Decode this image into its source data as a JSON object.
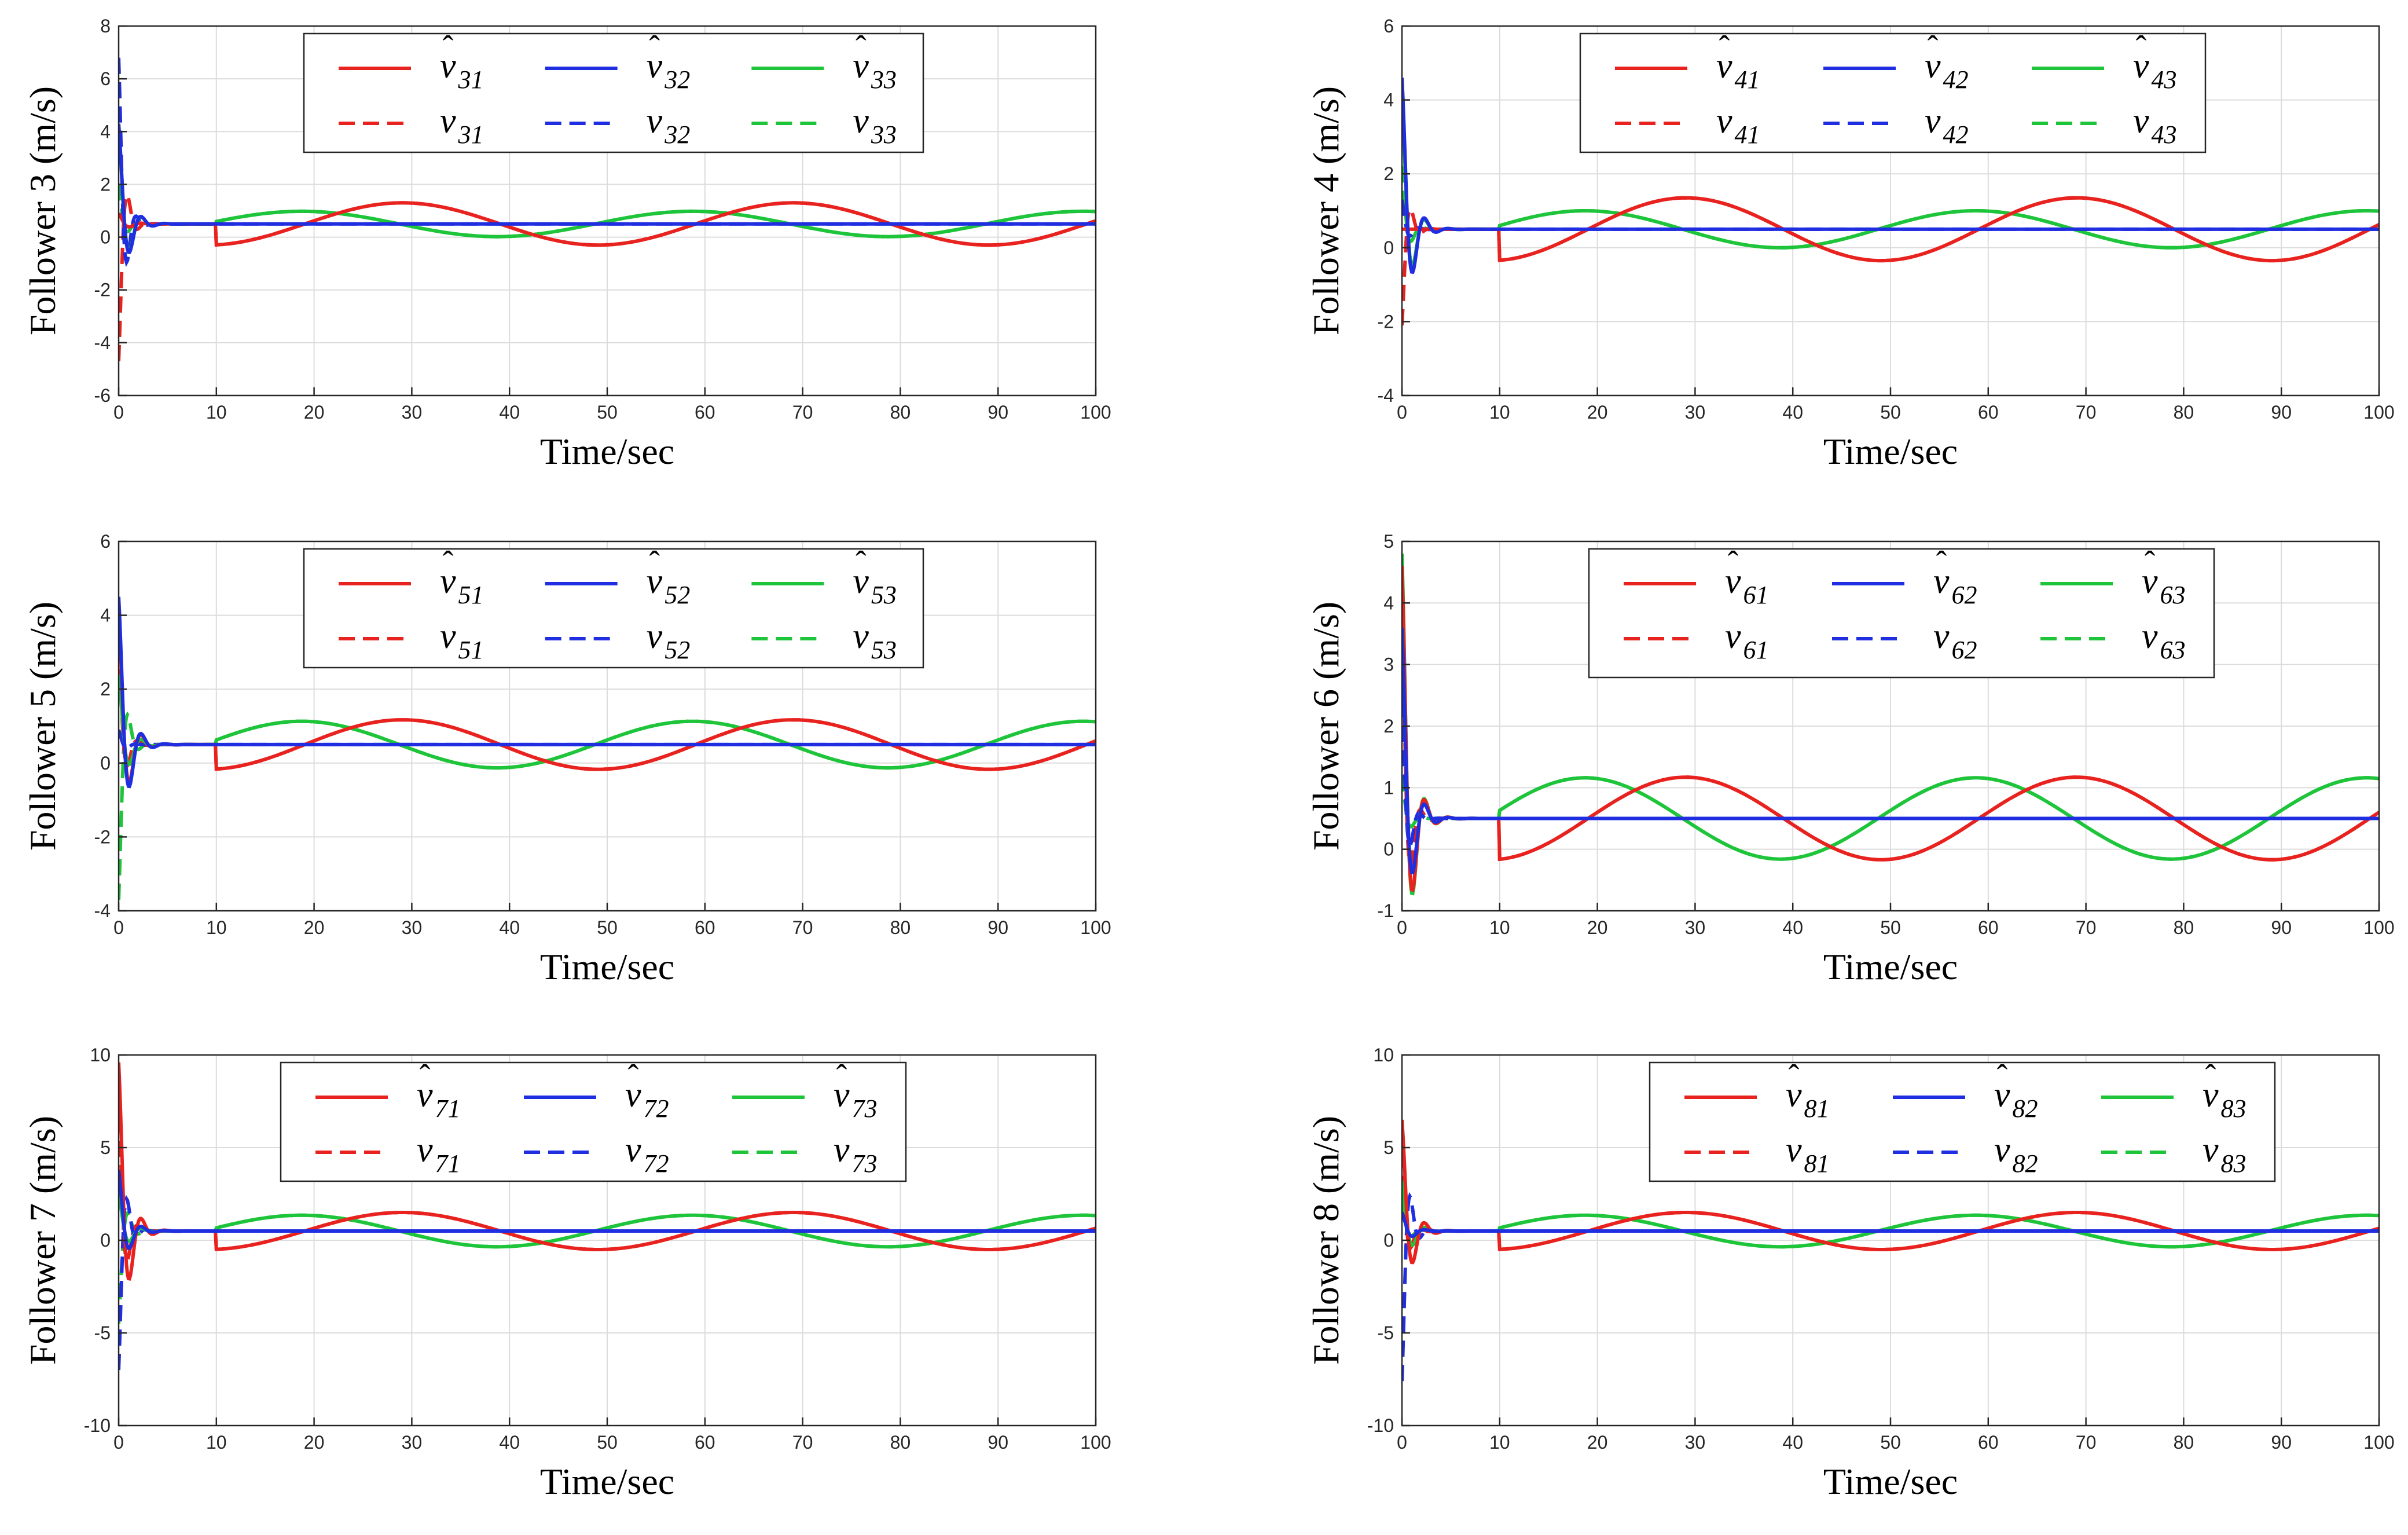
{
  "chart_data": [
    {
      "type": "line",
      "title": "",
      "xlabel": "Time/sec",
      "ylabel": "Follower 3 (m/s)",
      "xlim": [
        0,
        100
      ],
      "ylim": [
        -6,
        8
      ],
      "xticks": [
        0,
        10,
        20,
        30,
        40,
        50,
        60,
        70,
        80,
        90,
        100
      ],
      "yticks": [
        -6,
        -4,
        -2,
        0,
        2,
        4,
        6,
        8
      ],
      "grid": true,
      "legend": {
        "position": "top-center",
        "columns": 3
      },
      "series": [
        {
          "name": "v̂_31",
          "base": "v",
          "sub": "31",
          "hat": true,
          "color": "#e8231f",
          "dash": false,
          "values_desc": "estimate"
        },
        {
          "name": "v̂_32",
          "base": "v",
          "sub": "32",
          "hat": true,
          "color": "#1f2ee0",
          "dash": false
        },
        {
          "name": "v̂_33",
          "base": "v",
          "sub": "33",
          "hat": true,
          "color": "#1ec43a",
          "dash": false
        },
        {
          "name": "v_31",
          "base": "v",
          "sub": "31",
          "hat": false,
          "color": "#e8231f",
          "dash": true
        },
        {
          "name": "v_32",
          "base": "v",
          "sub": "32",
          "hat": false,
          "color": "#1f2ee0",
          "dash": true
        },
        {
          "name": "v_33",
          "base": "v",
          "sub": "33",
          "hat": false,
          "color": "#1ec43a",
          "dash": true
        }
      ],
      "steady": {
        "red_mean": 0.5,
        "red_amp": 0.8,
        "red_phase": 10,
        "green_mean": 0.5,
        "green_amp": 0.48,
        "green_phase": 0,
        "blue": 0.5
      },
      "transient": {
        "red_est_peak": 0.9,
        "red_ref_peak": -4.7,
        "blue_est_peak": 4.3,
        "blue_ref_peak": 6.8,
        "green_est_peak": 4.1,
        "green_ref_peak": 2.0
      }
    },
    {
      "type": "line",
      "title": "",
      "xlabel": "Time/sec",
      "ylabel": "Follower 4 (m/s)",
      "xlim": [
        0,
        100
      ],
      "ylim": [
        -4,
        6
      ],
      "xticks": [
        0,
        10,
        20,
        30,
        40,
        50,
        60,
        70,
        80,
        90,
        100
      ],
      "yticks": [
        -4,
        -2,
        0,
        2,
        4,
        6
      ],
      "grid": true,
      "legend": {
        "position": "top-right",
        "columns": 3
      },
      "series": [
        {
          "name": "v̂_41",
          "base": "v",
          "sub": "41",
          "hat": true,
          "color": "#e8231f",
          "dash": false
        },
        {
          "name": "v̂_42",
          "base": "v",
          "sub": "42",
          "hat": true,
          "color": "#1f2ee0",
          "dash": false
        },
        {
          "name": "v̂_43",
          "base": "v",
          "sub": "43",
          "hat": true,
          "color": "#1ec43a",
          "dash": false
        },
        {
          "name": "v_41",
          "base": "v",
          "sub": "41",
          "hat": false,
          "color": "#e8231f",
          "dash": true
        },
        {
          "name": "v_42",
          "base": "v",
          "sub": "42",
          "hat": false,
          "color": "#1f2ee0",
          "dash": true
        },
        {
          "name": "v_43",
          "base": "v",
          "sub": "43",
          "hat": false,
          "color": "#1ec43a",
          "dash": true
        }
      ],
      "steady": {
        "red_mean": 0.5,
        "red_amp": 0.85,
        "red_phase": 10,
        "green_mean": 0.5,
        "green_amp": 0.5,
        "green_phase": 0,
        "blue": 0.5
      },
      "transient": {
        "red_est_peak": 0.5,
        "red_ref_peak": -2.1,
        "blue_est_peak": 4.6,
        "blue_ref_peak": 1.3,
        "green_est_peak": 4.0,
        "green_ref_peak": 2.2
      }
    },
    {
      "type": "line",
      "title": "",
      "xlabel": "Time/sec",
      "ylabel": "Follower 5 (m/s)",
      "xlim": [
        0,
        100
      ],
      "ylim": [
        -4,
        6
      ],
      "xticks": [
        0,
        10,
        20,
        30,
        40,
        50,
        60,
        70,
        80,
        90,
        100
      ],
      "yticks": [
        -4,
        -2,
        0,
        2,
        4,
        6
      ],
      "grid": true,
      "legend": {
        "position": "top-center",
        "columns": 3
      },
      "series": [
        {
          "name": "v̂_51",
          "base": "v",
          "sub": "51",
          "hat": true,
          "color": "#e8231f",
          "dash": false
        },
        {
          "name": "v̂_52",
          "base": "v",
          "sub": "52",
          "hat": true,
          "color": "#1f2ee0",
          "dash": false
        },
        {
          "name": "v̂_53",
          "base": "v",
          "sub": "53",
          "hat": true,
          "color": "#1ec43a",
          "dash": false
        },
        {
          "name": "v_51",
          "base": "v",
          "sub": "51",
          "hat": false,
          "color": "#e8231f",
          "dash": true
        },
        {
          "name": "v_52",
          "base": "v",
          "sub": "52",
          "hat": false,
          "color": "#1f2ee0",
          "dash": true
        },
        {
          "name": "v_53",
          "base": "v",
          "sub": "53",
          "hat": false,
          "color": "#1ec43a",
          "dash": true
        }
      ],
      "steady": {
        "red_mean": 0.5,
        "red_amp": 0.67,
        "red_phase": 9,
        "green_mean": 0.5,
        "green_amp": 0.63,
        "green_phase": 1,
        "blue": 0.5
      },
      "transient": {
        "red_est_peak": 4.1,
        "red_ref_peak": 3.2,
        "blue_est_peak": 4.5,
        "blue_ref_peak": 0.9,
        "green_est_peak": 2.4,
        "green_ref_peak": -3.7
      }
    },
    {
      "type": "line",
      "title": "",
      "xlabel": "Time/sec",
      "ylabel": "Follower 6 (m/s)",
      "xlim": [
        0,
        100
      ],
      "ylim": [
        -1,
        5
      ],
      "xticks": [
        0,
        10,
        20,
        30,
        40,
        50,
        60,
        70,
        80,
        90,
        100
      ],
      "yticks": [
        -1,
        0,
        1,
        2,
        3,
        4,
        5
      ],
      "grid": true,
      "legend": {
        "position": "top-right",
        "columns": 3
      },
      "series": [
        {
          "name": "v̂_61",
          "base": "v",
          "sub": "61",
          "hat": true,
          "color": "#e8231f",
          "dash": false
        },
        {
          "name": "v̂_62",
          "base": "v",
          "sub": "62",
          "hat": true,
          "color": "#1f2ee0",
          "dash": false
        },
        {
          "name": "v̂_63",
          "base": "v",
          "sub": "63",
          "hat": true,
          "color": "#1ec43a",
          "dash": false
        },
        {
          "name": "v_61",
          "base": "v",
          "sub": "61",
          "hat": false,
          "color": "#e8231f",
          "dash": true
        },
        {
          "name": "v_62",
          "base": "v",
          "sub": "62",
          "hat": false,
          "color": "#1f2ee0",
          "dash": true
        },
        {
          "name": "v_63",
          "base": "v",
          "sub": "63",
          "hat": false,
          "color": "#1ec43a",
          "dash": true
        }
      ],
      "steady": {
        "red_mean": 0.5,
        "red_amp": 0.67,
        "red_phase": 9,
        "green_mean": 0.5,
        "green_amp": 0.66,
        "green_phase": 1,
        "blue": 0.5
      },
      "transient": {
        "red_est_peak": 4.6,
        "red_ref_peak": 4.1,
        "blue_est_peak": 3.6,
        "blue_ref_peak": 2.4,
        "green_est_peak": 4.8,
        "green_ref_peak": 1.2
      }
    },
    {
      "type": "line",
      "title": "",
      "xlabel": "Time/sec",
      "ylabel": "Follower 7 (m/s)",
      "xlim": [
        0,
        100
      ],
      "ylim": [
        -10,
        10
      ],
      "xticks": [
        0,
        10,
        20,
        30,
        40,
        50,
        60,
        70,
        80,
        90,
        100
      ],
      "yticks": [
        -10,
        -5,
        0,
        5,
        10
      ],
      "grid": true,
      "legend": {
        "position": "top-center",
        "columns": 3
      },
      "series": [
        {
          "name": "v̂_71",
          "base": "v",
          "sub": "71",
          "hat": true,
          "color": "#e8231f",
          "dash": false
        },
        {
          "name": "v̂_72",
          "base": "v",
          "sub": "72",
          "hat": true,
          "color": "#1f2ee0",
          "dash": false
        },
        {
          "name": "v̂_73",
          "base": "v",
          "sub": "73",
          "hat": true,
          "color": "#1ec43a",
          "dash": false
        },
        {
          "name": "v_71",
          "base": "v",
          "sub": "71",
          "hat": false,
          "color": "#e8231f",
          "dash": true
        },
        {
          "name": "v_72",
          "base": "v",
          "sub": "72",
          "hat": false,
          "color": "#1f2ee0",
          "dash": true
        },
        {
          "name": "v_73",
          "base": "v",
          "sub": "73",
          "hat": false,
          "color": "#1ec43a",
          "dash": true
        }
      ],
      "steady": {
        "red_mean": 0.5,
        "red_amp": 1.0,
        "red_phase": 15,
        "green_mean": 0.5,
        "green_amp": 0.85,
        "green_phase": 5,
        "blue": 0.5
      },
      "transient": {
        "red_est_peak": 9.6,
        "red_ref_peak": 8.0,
        "blue_est_peak": 3.8,
        "blue_ref_peak": -7.0,
        "green_est_peak": 2.5,
        "green_ref_peak": -4.5
      }
    },
    {
      "type": "line",
      "title": "",
      "xlabel": "Time/sec",
      "ylabel": "Follower 8 (m/s)",
      "xlim": [
        0,
        100
      ],
      "ylim": [
        -10,
        10
      ],
      "xticks": [
        0,
        10,
        20,
        30,
        40,
        50,
        60,
        70,
        80,
        90,
        100
      ],
      "yticks": [
        -10,
        -5,
        0,
        5,
        10
      ],
      "grid": true,
      "legend": {
        "position": "top-right",
        "columns": 3
      },
      "series": [
        {
          "name": "v̂_81",
          "base": "v",
          "sub": "81",
          "hat": true,
          "color": "#e8231f",
          "dash": false
        },
        {
          "name": "v̂_82",
          "base": "v",
          "sub": "82",
          "hat": true,
          "color": "#1f2ee0",
          "dash": false
        },
        {
          "name": "v̂_83",
          "base": "v",
          "sub": "83",
          "hat": true,
          "color": "#1ec43a",
          "dash": false
        },
        {
          "name": "v_81",
          "base": "v",
          "sub": "81",
          "hat": false,
          "color": "#e8231f",
          "dash": true
        },
        {
          "name": "v_82",
          "base": "v",
          "sub": "82",
          "hat": false,
          "color": "#1f2ee0",
          "dash": true
        },
        {
          "name": "v_83",
          "base": "v",
          "sub": "83",
          "hat": false,
          "color": "#1ec43a",
          "dash": true
        }
      ],
      "steady": {
        "red_mean": 0.5,
        "red_amp": 1.0,
        "red_phase": 15,
        "green_mean": 0.5,
        "green_amp": 0.85,
        "green_phase": 5,
        "blue": 0.5
      },
      "transient": {
        "red_est_peak": 6.5,
        "red_ref_peak": 4.8,
        "blue_est_peak": 1.5,
        "blue_ref_peak": -7.6,
        "green_est_peak": 3.2,
        "green_ref_peak": 2.0
      }
    }
  ]
}
